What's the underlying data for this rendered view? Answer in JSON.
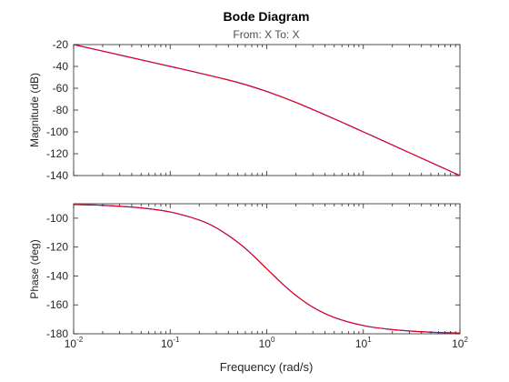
{
  "title": "Bode Diagram",
  "subtitle": "From: X  To: X",
  "chart_data": [
    {
      "type": "line",
      "panel": "magnitude",
      "ylabel": "Magnitude (dB)",
      "xscale": "log",
      "xlim": [
        0.01,
        100
      ],
      "ylim": [
        -140,
        -20
      ],
      "yticks": [
        -20,
        -40,
        -60,
        -80,
        -100,
        -120,
        -140
      ],
      "grid": false,
      "series": [
        {
          "color": "#0000ff",
          "x": [
            0.01,
            0.02,
            0.05,
            0.1,
            0.2,
            0.5,
            1,
            2,
            5,
            10,
            20,
            50,
            100
          ],
          "values": [
            -20,
            -26,
            -34,
            -40,
            -46.1,
            -54.7,
            -63,
            -73,
            -88.1,
            -100,
            -112,
            -128,
            -140
          ]
        },
        {
          "color": "#ff0000",
          "x": [
            0.01,
            0.02,
            0.05,
            0.1,
            0.2,
            0.5,
            1,
            2,
            5,
            10,
            20,
            50,
            100
          ],
          "values": [
            -20,
            -26,
            -34,
            -40,
            -46.1,
            -54.7,
            -63,
            -73,
            -88.1,
            -100,
            -112,
            -128,
            -140
          ]
        }
      ]
    },
    {
      "type": "line",
      "panel": "phase",
      "ylabel": "Phase (deg)",
      "xlabel": "Frequency (rad/s)",
      "xscale": "log",
      "xlim": [
        0.01,
        100
      ],
      "ylim": [
        -180,
        -90
      ],
      "yticks": [
        -100,
        -120,
        -140,
        -160,
        -180
      ],
      "xticks": [
        {
          "base": "10",
          "exp": "-2"
        },
        {
          "base": "10",
          "exp": "-1"
        },
        {
          "base": "10",
          "exp": "0"
        },
        {
          "base": "10",
          "exp": "1"
        },
        {
          "base": "10",
          "exp": "2"
        }
      ],
      "grid": false,
      "series": [
        {
          "color": "#0000ff",
          "x": [
            0.01,
            0.02,
            0.05,
            0.1,
            0.2,
            0.3,
            0.5,
            0.7,
            1,
            1.5,
            2,
            3,
            5,
            10,
            20,
            50,
            100
          ],
          "values": [
            -90.6,
            -91.1,
            -92.9,
            -95.7,
            -101.3,
            -106.7,
            -116.6,
            -125,
            -135,
            -146.3,
            -153.4,
            -161.6,
            -168.7,
            -174.3,
            -177.1,
            -178.9,
            -179.4
          ]
        },
        {
          "color": "#ff0000",
          "x": [
            0.01,
            0.02,
            0.05,
            0.1,
            0.2,
            0.3,
            0.5,
            0.7,
            1,
            1.5,
            2,
            3,
            5,
            10,
            20,
            50,
            100
          ],
          "values": [
            -90.6,
            -91.1,
            -92.9,
            -95.7,
            -101.3,
            -106.7,
            -116.6,
            -125,
            -135,
            -146.3,
            -153.4,
            -161.6,
            -168.7,
            -174.3,
            -177.1,
            -178.9,
            -179.4
          ]
        }
      ]
    }
  ]
}
